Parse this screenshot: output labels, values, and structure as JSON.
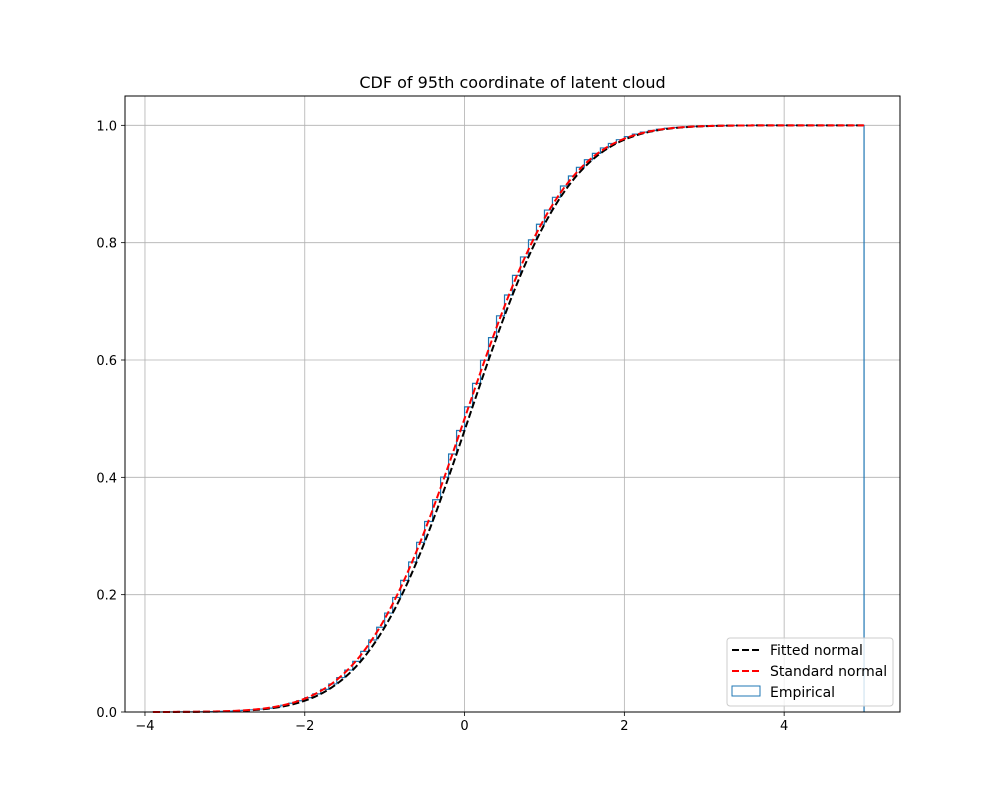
{
  "chart_data": {
    "type": "line",
    "title": "CDF of 95th coordinate of latent cloud",
    "xlabel": "",
    "ylabel": "",
    "xlim": [
      -4.25,
      5.45
    ],
    "ylim": [
      0,
      1.05
    ],
    "xticks": [
      -4,
      -2,
      0,
      2,
      4
    ],
    "yticks": [
      0.0,
      0.2,
      0.4,
      0.6,
      0.8,
      1.0
    ],
    "xtick_labels": [
      "−4",
      "−2",
      "0",
      "2",
      "4"
    ],
    "ytick_labels": [
      "0.0",
      "0.2",
      "0.4",
      "0.6",
      "0.8",
      "1.0"
    ],
    "grid": true,
    "legend_position": "bottom-right",
    "legend": [
      "Fitted normal",
      "Standard normal",
      "Empirical"
    ],
    "series": [
      {
        "name": "Fitted normal",
        "kind": "dashed-line",
        "color": "#000000",
        "x_range": [
          -3.9,
          5.0
        ],
        "mean": 0.05,
        "std": 0.99
      },
      {
        "name": "Standard normal",
        "kind": "dashed-line",
        "color": "#ff0000",
        "x_range": [
          -3.9,
          5.0
        ],
        "mean": 0.0,
        "std": 1.0
      },
      {
        "name": "Empirical",
        "kind": "step-histogram",
        "color": "#1f77b4",
        "x_start": -3.9,
        "x_end": 5.0,
        "bin_width": 0.1,
        "mean": 0.05,
        "std": 0.99
      }
    ]
  }
}
